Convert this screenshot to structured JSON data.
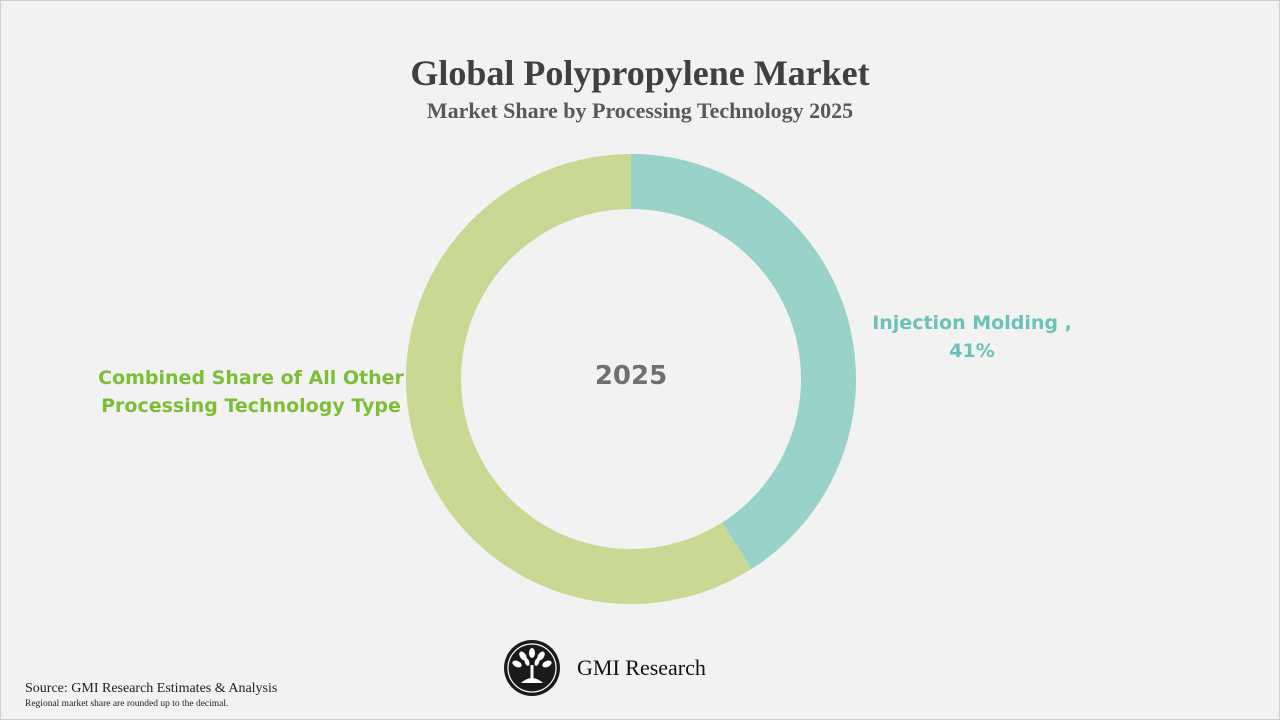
{
  "header": {
    "title": "Global Polypropylene Market",
    "subtitle": "Market Share by Processing Technology 2025"
  },
  "chart_data": {
    "type": "pie",
    "title": "Global Polypropylene Market",
    "subtitle": "Market Share by Processing Technology 2025",
    "center_label": "2025",
    "slices": [
      {
        "category": "Injection Molding",
        "value": 41,
        "label_line1": "Injection Molding ,",
        "label_line2": "41%",
        "color": "#98d2cb",
        "label_color": "#6cc2b8"
      },
      {
        "category": "Combined Share of All Other Processing Technology Type",
        "value": 59,
        "label_line1": "Combined Share of All Other",
        "label_line2": "Processing Technology Type",
        "color": "#c9d993",
        "label_color": "#7cbf36"
      }
    ]
  },
  "branding": {
    "logo_icon": "peacock-fan-icon",
    "name": "GMI Research"
  },
  "footer": {
    "source": "Source: GMI Research Estimates & Analysis",
    "note": "Regional market share are rounded up to the decimal."
  }
}
